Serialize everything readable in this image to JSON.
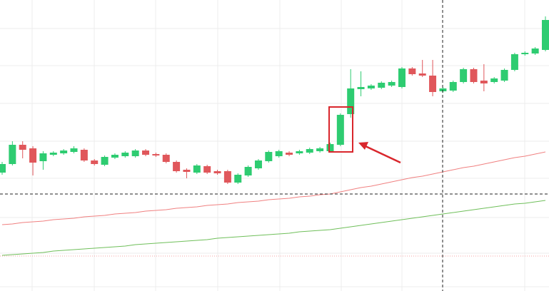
{
  "chart_data": {
    "type": "candlestick",
    "open": [
      166,
      178,
      205,
      200,
      182,
      191,
      193,
      195,
      198,
      183,
      177,
      187,
      189,
      189,
      197,
      192,
      191,
      181,
      170,
      166,
      175,
      168,
      168,
      152,
      162,
      172,
      182,
      189,
      194,
      193,
      194,
      196,
      196,
      205,
      248,
      283,
      284,
      285,
      288,
      286,
      312,
      305,
      302,
      280,
      281,
      293,
      311,
      295,
      293,
      295,
      310,
      332,
      333,
      338
    ],
    "high": [
      181,
      210,
      210,
      203,
      196,
      196,
      199,
      203,
      200,
      185,
      190,
      193,
      196,
      199,
      199,
      194,
      193,
      183,
      172,
      178,
      177,
      170,
      170,
      165,
      176,
      185,
      197,
      198,
      196,
      198,
      201,
      202,
      208,
      249,
      311,
      308,
      290,
      294,
      295,
      314,
      314,
      324,
      324,
      286,
      295,
      313,
      313,
      318,
      300,
      312,
      334,
      336,
      342,
      385
    ],
    "low": [
      163,
      176,
      186,
      162,
      170,
      189,
      191,
      193,
      181,
      176,
      175,
      185,
      187,
      187,
      189,
      188,
      179,
      166,
      158,
      164,
      164,
      163,
      150,
      150,
      160,
      170,
      180,
      187,
      189,
      191,
      192,
      194,
      194,
      203,
      243,
      273,
      282,
      283,
      286,
      284,
      302,
      300,
      273,
      278,
      279,
      291,
      291,
      280,
      291,
      293,
      308,
      330,
      331,
      336
    ],
    "close": [
      178,
      205,
      198,
      180,
      193,
      194,
      197,
      200,
      183,
      178,
      188,
      191,
      194,
      197,
      191,
      190,
      181,
      168,
      167,
      176,
      166,
      165,
      152,
      163,
      174,
      183,
      195,
      196,
      191,
      196,
      199,
      200,
      206,
      247,
      284,
      286,
      288,
      292,
      293,
      312,
      304,
      302,
      279,
      284,
      293,
      311,
      293,
      291,
      298,
      310,
      332,
      334,
      340,
      380
    ],
    "up_color": "#2ecc71",
    "down_color": "#e0575b",
    "series": [
      {
        "color": "#f08080",
        "values": [
          93,
          94,
          96,
          97,
          98,
          100,
          101,
          102,
          104,
          105,
          106,
          108,
          109,
          110,
          112,
          113,
          114,
          116,
          117,
          118,
          120,
          121,
          122,
          124,
          125,
          126,
          128,
          129,
          130,
          132,
          133,
          135,
          136,
          139,
          142,
          145,
          147,
          150,
          153,
          156,
          159,
          161,
          164,
          167,
          170,
          173,
          175,
          178,
          181,
          184,
          187,
          189,
          192,
          195
        ]
      },
      {
        "color": "#6fbf5a",
        "values": [
          50,
          51,
          52,
          53,
          54,
          56,
          57,
          58,
          59,
          60,
          61,
          62,
          63,
          65,
          66,
          67,
          68,
          69,
          70,
          71,
          72,
          74,
          75,
          76,
          77,
          78,
          79,
          80,
          81,
          83,
          84,
          85,
          86,
          88,
          90,
          92,
          94,
          96,
          98,
          100,
          102,
          104,
          106,
          108,
          110,
          112,
          114,
          116,
          118,
          120,
          122,
          123,
          125,
          127
        ]
      }
    ],
    "ylim": [
      0,
      408
    ]
  }
}
